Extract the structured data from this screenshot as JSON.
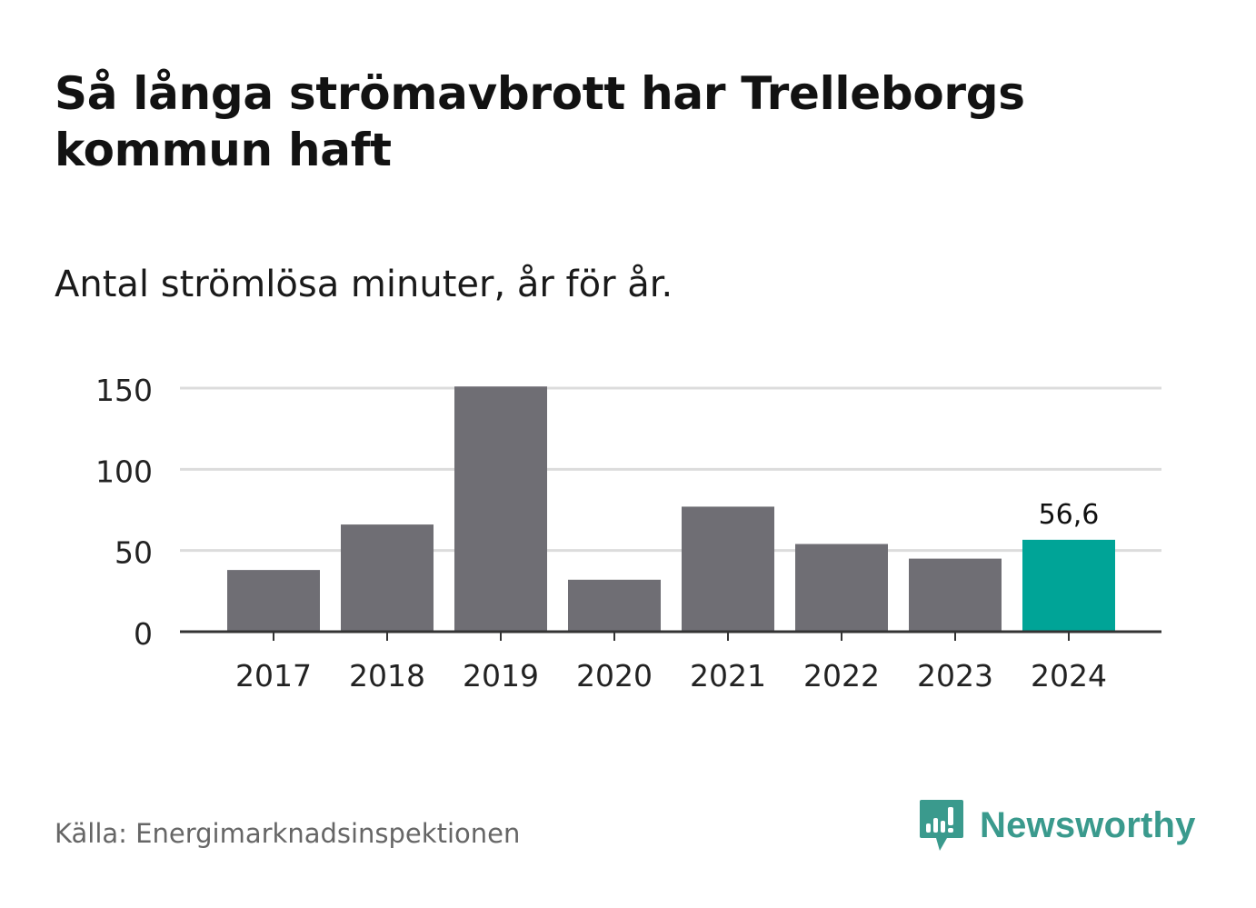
{
  "header": {
    "title": "Så långa strömavbrott har Trelleborgs kommun haft",
    "subtitle": "Antal strömlösa minuter, år för år."
  },
  "footer": {
    "source": "Källa: Energimarknadsinspektionen",
    "brand": "Newsworthy",
    "brand_icon": "bar-chart-speech-bubble-icon"
  },
  "colors": {
    "bar": "#6f6e74",
    "highlight": "#00a497",
    "grid": "#dcdcdc",
    "axis": "#333333",
    "brand": "#3a9a8d"
  },
  "chart_data": {
    "type": "bar",
    "title": "Så långa strömavbrott har Trelleborgs kommun haft",
    "subtitle": "Antal strömlösa minuter, år för år.",
    "xlabel": "",
    "ylabel": "",
    "categories": [
      "2017",
      "2018",
      "2019",
      "2020",
      "2021",
      "2022",
      "2023",
      "2024"
    ],
    "values": [
      38,
      66,
      151,
      32,
      77,
      54,
      45,
      56.6
    ],
    "highlight_index": 7,
    "data_labels": [
      {
        "index": 7,
        "label": "56,6"
      }
    ],
    "ylim": [
      0,
      150
    ],
    "yticks": [
      0,
      50,
      100,
      150
    ],
    "ytick_labels": [
      "0",
      "50",
      "100",
      "150"
    ],
    "grid": true,
    "legend": "none"
  }
}
